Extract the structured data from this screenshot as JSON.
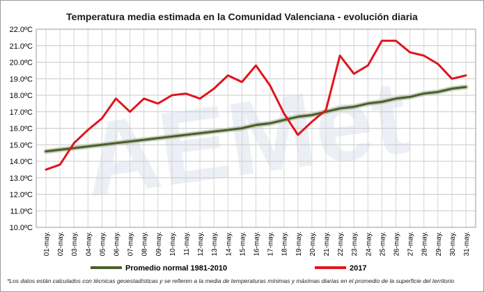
{
  "chart_data": {
    "type": "line",
    "title": "Temperatura media estimada en la Comunidad Valenciana - evolución diaria",
    "categories": [
      "01-may.",
      "02-may.",
      "03-may.",
      "04-may.",
      "05-may.",
      "06-may.",
      "07-may.",
      "08-may.",
      "09-may.",
      "10-may.",
      "11-may.",
      "12-may.",
      "13-may.",
      "14-may.",
      "15-may.",
      "16-may.",
      "17-may.",
      "18-may.",
      "19-may.",
      "20-may.",
      "21-may.",
      "22-may.",
      "23-may.",
      "24-may.",
      "25-may.",
      "26-may.",
      "27-may.",
      "28-may.",
      "29-may.",
      "30-may.",
      "31-may."
    ],
    "ylim": [
      10.0,
      22.0
    ],
    "y_ticks": [
      "10.0ºC",
      "11.0ºC",
      "12.0ºC",
      "13.0ºC",
      "14.0ºC",
      "15.0ºC",
      "16.0ºC",
      "17.0ºC",
      "18.0ºC",
      "19.0ºC",
      "20.0ºC",
      "21.0ºC",
      "22.0ºC"
    ],
    "grid": true,
    "legend_position": "bottom",
    "series": [
      {
        "name": "Promedio normal 1981-2010",
        "color": "#4a5e2a",
        "values": [
          14.6,
          14.7,
          14.8,
          14.9,
          15.0,
          15.1,
          15.2,
          15.3,
          15.4,
          15.5,
          15.6,
          15.7,
          15.8,
          15.9,
          16.0,
          16.2,
          16.3,
          16.5,
          16.7,
          16.8,
          17.0,
          17.2,
          17.3,
          17.5,
          17.6,
          17.8,
          17.9,
          18.1,
          18.2,
          18.4,
          18.5
        ]
      },
      {
        "name": "2017",
        "color": "#e0141c",
        "values": [
          13.5,
          13.8,
          15.1,
          15.9,
          16.6,
          17.8,
          17.0,
          17.8,
          17.5,
          18.0,
          18.1,
          17.8,
          18.4,
          19.2,
          18.8,
          19.8,
          18.6,
          16.9,
          15.6,
          16.4,
          17.1,
          20.4,
          19.3,
          19.8,
          21.3,
          21.3,
          20.6,
          20.4,
          19.9,
          19.0,
          19.2
        ]
      }
    ]
  },
  "footnote": "*Los datos están calculados con técnicas geoestadísticas y se refieren a la media de temperaturas mínimas y máximas diarias en el promedio de la superficie del territorio",
  "watermark_text": "AEMet"
}
